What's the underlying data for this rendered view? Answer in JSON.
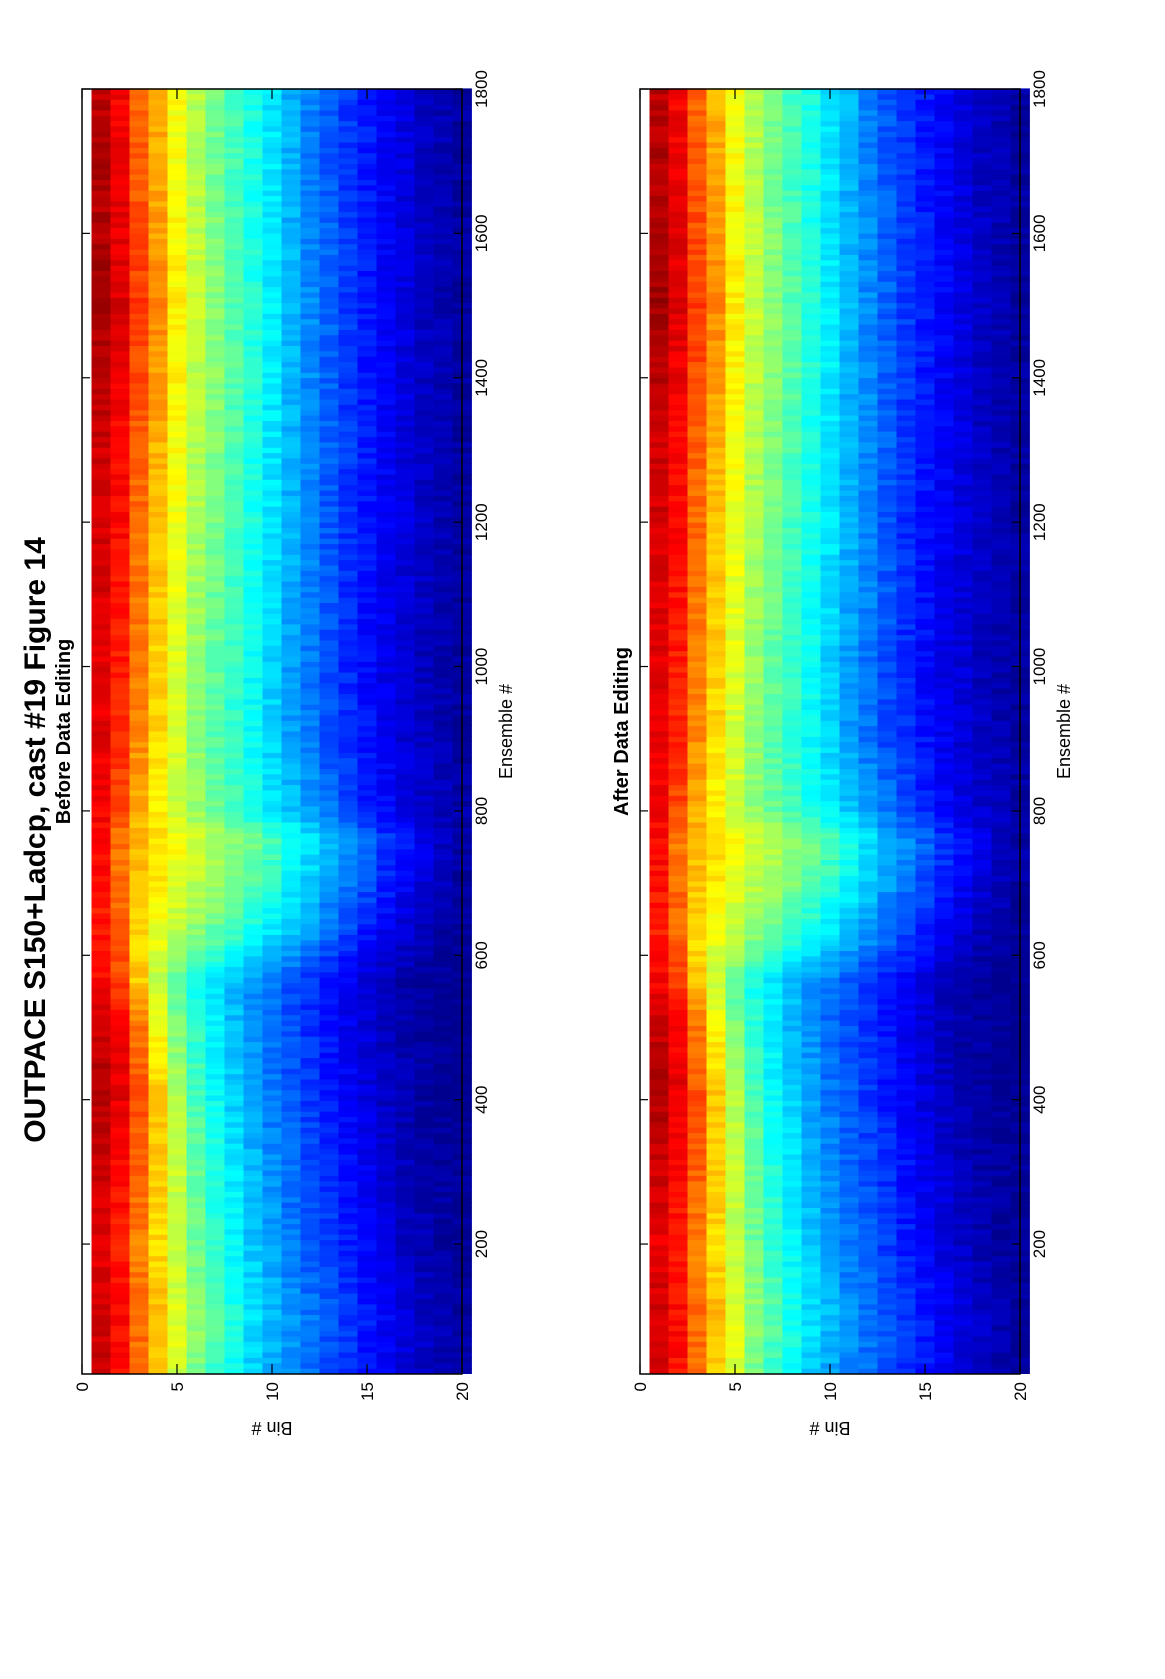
{
  "figure": {
    "title": "OUTPACE S150+Ladcp, cast #19  Figure 14"
  },
  "colormap": [
    "#00008f",
    "#0000ff",
    "#0080ff",
    "#00ffff",
    "#80ff80",
    "#ffff00",
    "#ff8000",
    "#ff0000",
    "#800000"
  ],
  "chart_data": [
    {
      "type": "heatmap",
      "title": "Before Data Editing",
      "xlabel": "Ensemble #",
      "ylabel": "Bin #",
      "xlim": [
        20,
        1800
      ],
      "ylim": [
        0,
        20
      ],
      "x_ticks": [
        200,
        400,
        600,
        800,
        1000,
        1200,
        1400,
        1600,
        1800
      ],
      "y_ticks": [
        0,
        5,
        10,
        15,
        20
      ],
      "bins": [
        1,
        2,
        3,
        4,
        5,
        6,
        7,
        8,
        9,
        10,
        11,
        12,
        13,
        14,
        15,
        16,
        17,
        18,
        19,
        20
      ],
      "ensembles": [
        20,
        100,
        200,
        300,
        400,
        500,
        560,
        620,
        700,
        760,
        800,
        900,
        1000,
        1100,
        1200,
        1300,
        1400,
        1500,
        1600,
        1700,
        1800
      ],
      "values_by_bin": [
        [
          0.92,
          0.92,
          0.9,
          0.92,
          0.95,
          0.93,
          0.88,
          0.85,
          0.86,
          0.87,
          0.88,
          0.9,
          0.9,
          0.91,
          0.92,
          0.92,
          0.94,
          0.97,
          0.95,
          0.95,
          0.94
        ],
        [
          0.86,
          0.87,
          0.85,
          0.87,
          0.9,
          0.88,
          0.82,
          0.78,
          0.77,
          0.76,
          0.8,
          0.84,
          0.85,
          0.86,
          0.87,
          0.87,
          0.89,
          0.91,
          0.9,
          0.89,
          0.88
        ],
        [
          0.76,
          0.78,
          0.75,
          0.78,
          0.8,
          0.76,
          0.68,
          0.66,
          0.68,
          0.7,
          0.7,
          0.74,
          0.75,
          0.76,
          0.77,
          0.78,
          0.8,
          0.82,
          0.8,
          0.79,
          0.78
        ],
        [
          0.68,
          0.69,
          0.66,
          0.68,
          0.68,
          0.63,
          0.56,
          0.6,
          0.64,
          0.66,
          0.63,
          0.66,
          0.67,
          0.68,
          0.69,
          0.7,
          0.72,
          0.74,
          0.72,
          0.71,
          0.7
        ],
        [
          0.58,
          0.6,
          0.56,
          0.57,
          0.55,
          0.5,
          0.46,
          0.55,
          0.6,
          0.62,
          0.57,
          0.58,
          0.59,
          0.6,
          0.61,
          0.62,
          0.63,
          0.64,
          0.63,
          0.62,
          0.62
        ],
        [
          0.49,
          0.52,
          0.48,
          0.48,
          0.45,
          0.42,
          0.4,
          0.5,
          0.56,
          0.58,
          0.52,
          0.51,
          0.52,
          0.53,
          0.54,
          0.55,
          0.56,
          0.57,
          0.56,
          0.55,
          0.55
        ],
        [
          0.43,
          0.46,
          0.42,
          0.41,
          0.38,
          0.36,
          0.35,
          0.46,
          0.53,
          0.55,
          0.48,
          0.46,
          0.47,
          0.48,
          0.49,
          0.5,
          0.51,
          0.51,
          0.5,
          0.49,
          0.49
        ],
        [
          0.38,
          0.4,
          0.37,
          0.36,
          0.33,
          0.31,
          0.31,
          0.42,
          0.5,
          0.52,
          0.44,
          0.42,
          0.43,
          0.44,
          0.44,
          0.45,
          0.46,
          0.46,
          0.45,
          0.44,
          0.44
        ],
        [
          0.33,
          0.35,
          0.32,
          0.31,
          0.28,
          0.27,
          0.27,
          0.38,
          0.46,
          0.49,
          0.4,
          0.38,
          0.38,
          0.39,
          0.4,
          0.4,
          0.41,
          0.41,
          0.4,
          0.4,
          0.4
        ],
        [
          0.29,
          0.31,
          0.28,
          0.27,
          0.24,
          0.23,
          0.24,
          0.34,
          0.42,
          0.45,
          0.36,
          0.33,
          0.33,
          0.34,
          0.35,
          0.35,
          0.36,
          0.36,
          0.35,
          0.35,
          0.35
        ],
        [
          0.26,
          0.27,
          0.24,
          0.23,
          0.21,
          0.2,
          0.2,
          0.3,
          0.37,
          0.4,
          0.32,
          0.28,
          0.28,
          0.29,
          0.3,
          0.3,
          0.3,
          0.31,
          0.3,
          0.3,
          0.3
        ],
        [
          0.23,
          0.24,
          0.21,
          0.2,
          0.18,
          0.17,
          0.17,
          0.26,
          0.33,
          0.35,
          0.28,
          0.24,
          0.24,
          0.25,
          0.25,
          0.26,
          0.26,
          0.26,
          0.26,
          0.25,
          0.25
        ],
        [
          0.2,
          0.21,
          0.18,
          0.17,
          0.15,
          0.14,
          0.14,
          0.22,
          0.28,
          0.3,
          0.24,
          0.2,
          0.2,
          0.21,
          0.21,
          0.22,
          0.22,
          0.22,
          0.22,
          0.21,
          0.21
        ],
        [
          0.17,
          0.18,
          0.15,
          0.14,
          0.12,
          0.11,
          0.11,
          0.18,
          0.24,
          0.26,
          0.2,
          0.17,
          0.16,
          0.17,
          0.17,
          0.18,
          0.18,
          0.18,
          0.18,
          0.18,
          0.18
        ],
        [
          0.14,
          0.15,
          0.12,
          0.11,
          0.09,
          0.08,
          0.08,
          0.14,
          0.2,
          0.22,
          0.16,
          0.14,
          0.13,
          0.14,
          0.14,
          0.15,
          0.15,
          0.15,
          0.15,
          0.15,
          0.15
        ],
        [
          0.11,
          0.12,
          0.09,
          0.08,
          0.06,
          0.05,
          0.05,
          0.1,
          0.16,
          0.18,
          0.13,
          0.11,
          0.1,
          0.11,
          0.11,
          0.12,
          0.12,
          0.12,
          0.12,
          0.12,
          0.12
        ],
        [
          0.08,
          0.09,
          0.06,
          0.05,
          0.04,
          0.03,
          0.03,
          0.07,
          0.12,
          0.14,
          0.1,
          0.08,
          0.08,
          0.08,
          0.09,
          0.09,
          0.09,
          0.09,
          0.09,
          0.09,
          0.09
        ],
        [
          0.06,
          0.06,
          0.04,
          0.03,
          0.02,
          0.02,
          0.02,
          0.04,
          0.08,
          0.1,
          0.07,
          0.06,
          0.05,
          0.06,
          0.06,
          0.06,
          0.06,
          0.06,
          0.06,
          0.06,
          0.06
        ],
        [
          0.04,
          0.04,
          0.02,
          0.02,
          0.01,
          0.01,
          0.01,
          0.02,
          0.05,
          0.06,
          0.05,
          0.04,
          0.03,
          0.04,
          0.04,
          0.04,
          0.04,
          0.04,
          0.04,
          0.04,
          0.04
        ],
        [
          0.02,
          0.02,
          0.01,
          0.01,
          0.0,
          0.0,
          0.0,
          0.01,
          0.02,
          0.03,
          0.03,
          0.02,
          0.02,
          0.02,
          0.02,
          0.02,
          0.02,
          0.02,
          0.02,
          0.02,
          0.02
        ]
      ]
    },
    {
      "type": "heatmap",
      "title": "After Data Editing",
      "xlabel": "Ensemble #",
      "ylabel": "Bin #",
      "xlim": [
        20,
        1800
      ],
      "ylim": [
        0,
        20
      ],
      "x_ticks": [
        200,
        400,
        600,
        800,
        1000,
        1200,
        1400,
        1600,
        1800
      ],
      "y_ticks": [
        0,
        5,
        10,
        15,
        20
      ],
      "bins": [
        1,
        2,
        3,
        4,
        5,
        6,
        7,
        8,
        9,
        10,
        11,
        12,
        13,
        14,
        15,
        16,
        17,
        18,
        19,
        20
      ],
      "ensembles": [
        20,
        100,
        200,
        300,
        400,
        500,
        560,
        620,
        700,
        760,
        800,
        900,
        1000,
        1100,
        1200,
        1300,
        1400,
        1500,
        1600,
        1700,
        1800
      ],
      "values_by_bin": [
        [
          0.92,
          0.92,
          0.9,
          0.92,
          0.95,
          0.93,
          0.88,
          0.85,
          0.86,
          0.87,
          0.88,
          0.9,
          0.9,
          0.91,
          0.92,
          0.92,
          0.94,
          0.97,
          0.95,
          0.95,
          0.94
        ],
        [
          0.86,
          0.87,
          0.85,
          0.87,
          0.9,
          0.88,
          0.82,
          0.78,
          0.77,
          0.76,
          0.8,
          0.84,
          0.85,
          0.86,
          0.87,
          0.87,
          0.89,
          0.91,
          0.9,
          0.89,
          0.88
        ],
        [
          0.76,
          0.78,
          0.75,
          0.78,
          0.8,
          0.76,
          0.68,
          0.66,
          0.68,
          0.7,
          0.7,
          0.74,
          0.75,
          0.76,
          0.77,
          0.78,
          0.8,
          0.82,
          0.8,
          0.79,
          0.78
        ],
        [
          0.68,
          0.69,
          0.66,
          0.68,
          0.68,
          0.63,
          0.56,
          0.6,
          0.64,
          0.66,
          0.63,
          0.66,
          0.67,
          0.68,
          0.69,
          0.7,
          0.72,
          0.74,
          0.72,
          0.71,
          0.7
        ],
        [
          0.58,
          0.6,
          0.56,
          0.57,
          0.55,
          0.5,
          0.46,
          0.55,
          0.6,
          0.62,
          0.57,
          0.58,
          0.59,
          0.6,
          0.61,
          0.62,
          0.63,
          0.64,
          0.63,
          0.62,
          0.62
        ],
        [
          0.49,
          0.52,
          0.48,
          0.48,
          0.45,
          0.42,
          0.4,
          0.5,
          0.56,
          0.58,
          0.52,
          0.51,
          0.52,
          0.53,
          0.54,
          0.55,
          0.56,
          0.57,
          0.56,
          0.55,
          0.55
        ],
        [
          0.43,
          0.46,
          0.42,
          0.41,
          0.38,
          0.36,
          0.35,
          0.46,
          0.53,
          0.55,
          0.48,
          0.46,
          0.47,
          0.48,
          0.49,
          0.5,
          0.51,
          0.51,
          0.5,
          0.49,
          0.49
        ],
        [
          0.38,
          0.4,
          0.37,
          0.36,
          0.33,
          0.31,
          0.31,
          0.42,
          0.5,
          0.52,
          0.44,
          0.42,
          0.43,
          0.44,
          0.44,
          0.45,
          0.46,
          0.46,
          0.45,
          0.44,
          0.44
        ],
        [
          0.33,
          0.35,
          0.32,
          0.31,
          0.28,
          0.27,
          0.27,
          0.38,
          0.46,
          0.49,
          0.4,
          0.38,
          0.38,
          0.39,
          0.4,
          0.4,
          0.41,
          0.41,
          0.4,
          0.4,
          0.4
        ],
        [
          0.29,
          0.31,
          0.28,
          0.27,
          0.24,
          0.23,
          0.24,
          0.34,
          0.42,
          0.45,
          0.36,
          0.33,
          0.33,
          0.34,
          0.35,
          0.35,
          0.36,
          0.36,
          0.35,
          0.35,
          0.35
        ],
        [
          0.26,
          0.27,
          0.24,
          0.23,
          0.21,
          0.2,
          0.2,
          0.3,
          0.37,
          0.4,
          0.32,
          0.28,
          0.28,
          0.29,
          0.3,
          0.3,
          0.3,
          0.31,
          0.3,
          0.3,
          0.3
        ],
        [
          0.23,
          0.24,
          0.21,
          0.2,
          0.18,
          0.17,
          0.17,
          0.26,
          0.33,
          0.35,
          0.28,
          0.24,
          0.24,
          0.25,
          0.25,
          0.26,
          0.26,
          0.26,
          0.26,
          0.25,
          0.25
        ],
        [
          0.2,
          0.21,
          0.18,
          0.17,
          0.15,
          0.14,
          0.14,
          0.22,
          0.28,
          0.3,
          0.24,
          0.2,
          0.2,
          0.21,
          0.21,
          0.22,
          0.22,
          0.22,
          0.22,
          0.21,
          0.21
        ],
        [
          0.17,
          0.18,
          0.15,
          0.14,
          0.12,
          0.11,
          0.11,
          0.18,
          0.24,
          0.26,
          0.2,
          0.17,
          0.16,
          0.17,
          0.17,
          0.18,
          0.18,
          0.18,
          0.18,
          0.18,
          0.18
        ],
        [
          0.14,
          0.15,
          0.12,
          0.11,
          0.09,
          0.08,
          0.08,
          0.14,
          0.2,
          0.22,
          0.16,
          0.14,
          0.13,
          0.14,
          0.14,
          0.15,
          0.15,
          0.15,
          0.15,
          0.15,
          0.15
        ],
        [
          0.11,
          0.12,
          0.09,
          0.08,
          0.06,
          0.05,
          0.05,
          0.1,
          0.16,
          0.18,
          0.13,
          0.11,
          0.1,
          0.11,
          0.11,
          0.12,
          0.12,
          0.12,
          0.12,
          0.12,
          0.12
        ],
        [
          0.08,
          0.09,
          0.06,
          0.05,
          0.04,
          0.03,
          0.03,
          0.07,
          0.12,
          0.14,
          0.1,
          0.08,
          0.08,
          0.08,
          0.09,
          0.09,
          0.09,
          0.09,
          0.09,
          0.09,
          0.09
        ],
        [
          0.06,
          0.06,
          0.04,
          0.03,
          0.02,
          0.02,
          0.02,
          0.04,
          0.08,
          0.1,
          0.07,
          0.06,
          0.05,
          0.06,
          0.06,
          0.06,
          0.06,
          0.06,
          0.06,
          0.06,
          0.06
        ],
        [
          0.04,
          0.04,
          0.02,
          0.02,
          0.01,
          0.01,
          0.01,
          0.02,
          0.05,
          0.06,
          0.05,
          0.04,
          0.03,
          0.04,
          0.04,
          0.04,
          0.04,
          0.04,
          0.04,
          0.04,
          0.04
        ],
        [
          0.02,
          0.02,
          0.01,
          0.01,
          0.0,
          0.0,
          0.0,
          0.01,
          0.02,
          0.03,
          0.03,
          0.02,
          0.02,
          0.02,
          0.02,
          0.02,
          0.02,
          0.02,
          0.02,
          0.02,
          0.02
        ]
      ]
    }
  ]
}
